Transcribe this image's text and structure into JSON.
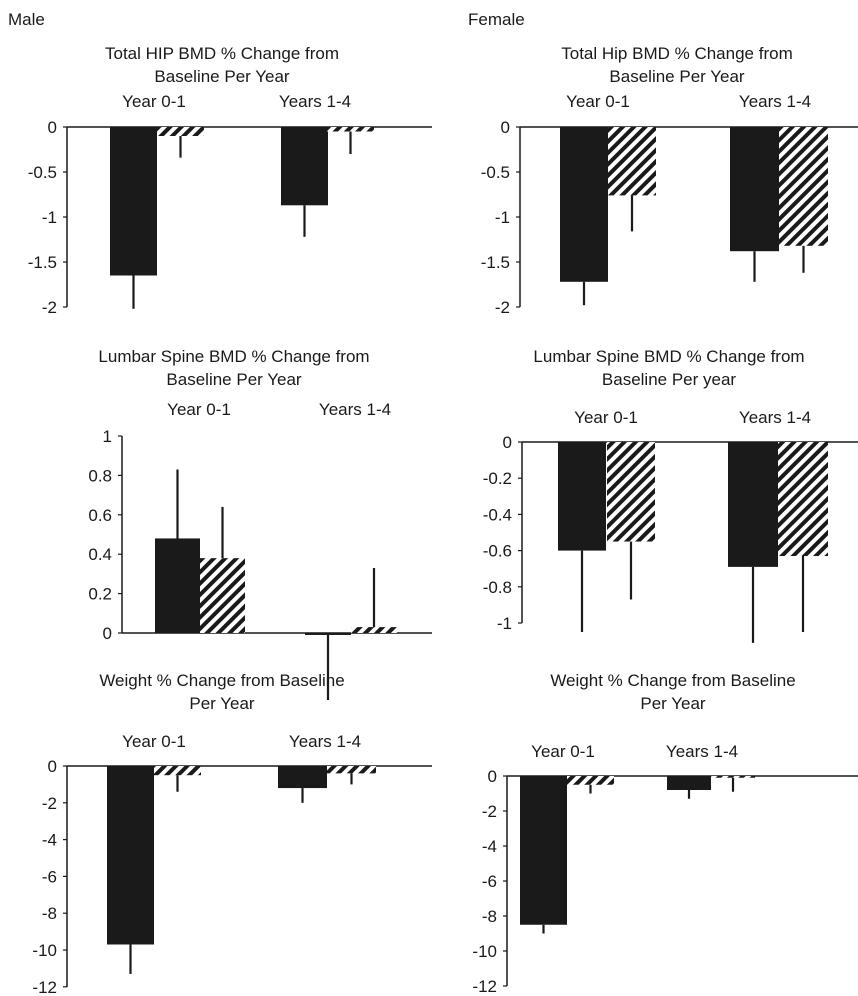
{
  "columns": {
    "male": "Male",
    "female": "Female"
  },
  "colors": {
    "bar_solid": "#1a1a1a",
    "bar_hatched": "#1a1a1a",
    "axis": "#1a1a1a"
  },
  "chart_data": [
    {
      "id": "male-hip",
      "type": "bar",
      "panel": "Male",
      "title": [
        "Total HIP BMD % Change from",
        "Baseline Per Year"
      ],
      "categories": [
        "Year 0-1",
        "Years 1-4"
      ],
      "ylim": [
        -2,
        0
      ],
      "yticks": [
        0,
        -0.5,
        -1,
        -1.5,
        -2
      ],
      "ytick_labels": [
        "0",
        "-0.5",
        "-1",
        "-1.5",
        "-2"
      ],
      "category_labels_position": "top",
      "series": [
        {
          "style": "solid",
          "values": [
            -1.65,
            -0.87
          ],
          "error": [
            0.37,
            0.35
          ]
        },
        {
          "style": "hatched",
          "values": [
            -0.1,
            -0.05
          ],
          "error": [
            0.24,
            0.25
          ]
        }
      ]
    },
    {
      "id": "female-hip",
      "type": "bar",
      "panel": "Female",
      "title": [
        "Total Hip BMD % Change from",
        "Baseline Per Year"
      ],
      "categories": [
        "Year 0-1",
        "Years 1-4"
      ],
      "ylim": [
        -2,
        0
      ],
      "yticks": [
        0,
        -0.5,
        -1,
        -1.5,
        -2
      ],
      "ytick_labels": [
        "0",
        "-0.5",
        "-1",
        "-1.5",
        "-2"
      ],
      "category_labels_position": "top",
      "series": [
        {
          "style": "solid",
          "values": [
            -1.72,
            -1.38
          ],
          "error": [
            0.26,
            0.34
          ]
        },
        {
          "style": "hatched",
          "values": [
            -0.76,
            -1.32
          ],
          "error": [
            0.4,
            0.3
          ]
        }
      ]
    },
    {
      "id": "male-spine",
      "type": "bar",
      "panel": "Male",
      "title": [
        "Lumbar Spine BMD % Change from",
        "Baseline Per Year"
      ],
      "categories": [
        "Year 0-1",
        "Years 1-4"
      ],
      "ylim": [
        0,
        1
      ],
      "yticks": [
        1,
        0.8,
        0.6,
        0.4,
        0.2,
        0
      ],
      "ytick_labels": [
        "1",
        "0.8",
        "0.6",
        "0.4",
        "0.2",
        "0"
      ],
      "category_labels_position": "top",
      "series": [
        {
          "style": "solid",
          "values": [
            0.48,
            -0.01
          ],
          "error": [
            0.35,
            0.33
          ]
        },
        {
          "style": "hatched",
          "values": [
            0.38,
            0.03
          ],
          "error": [
            0.26,
            0.3
          ]
        }
      ]
    },
    {
      "id": "female-spine",
      "type": "bar",
      "panel": "Female",
      "title": [
        "Lumbar Spine BMD % Change from",
        "Baseline Per year"
      ],
      "categories": [
        "Year 0-1",
        "Years 1-4"
      ],
      "ylim": [
        -1,
        0
      ],
      "yticks": [
        0,
        -0.2,
        -0.4,
        -0.6,
        -0.8,
        -1
      ],
      "ytick_labels": [
        "0",
        "-0.2",
        "-0.4",
        "-0.6",
        "-0.8",
        "-1"
      ],
      "category_labels_position": "top",
      "series": [
        {
          "style": "solid",
          "values": [
            -0.6,
            -0.69
          ],
          "error": [
            0.45,
            0.42
          ]
        },
        {
          "style": "hatched",
          "values": [
            -0.55,
            -0.63
          ],
          "error": [
            0.32,
            0.42
          ]
        }
      ]
    },
    {
      "id": "male-weight",
      "type": "bar",
      "panel": "Male",
      "title": [
        "Weight % Change from Baseline",
        "Per Year"
      ],
      "categories": [
        "Year 0-1",
        "Years 1-4"
      ],
      "ylim": [
        -12,
        0
      ],
      "yticks": [
        0,
        -2,
        -4,
        -6,
        -8,
        -10,
        -12
      ],
      "ytick_labels": [
        "0",
        "-2",
        "-4",
        "-6",
        "-8",
        "-10",
        "-12"
      ],
      "category_labels_position": "top",
      "series": [
        {
          "style": "solid",
          "values": [
            -9.7,
            -1.2
          ],
          "error": [
            1.6,
            0.8
          ]
        },
        {
          "style": "hatched",
          "values": [
            -0.5,
            -0.4
          ],
          "error": [
            0.9,
            0.6
          ]
        }
      ]
    },
    {
      "id": "female-weight",
      "type": "bar",
      "panel": "Female",
      "title": [
        "Weight % Change from Baseline",
        "Per Year"
      ],
      "categories": [
        "Year 0-1",
        "Years 1-4"
      ],
      "ylim": [
        -12,
        0
      ],
      "yticks": [
        0,
        -2,
        -4,
        -6,
        -8,
        -10,
        -12
      ],
      "ytick_labels": [
        "0",
        "-2",
        "-4",
        "-6",
        "-8",
        "-10",
        "-12"
      ],
      "category_labels_position": "top",
      "series": [
        {
          "style": "solid",
          "values": [
            -8.5,
            -0.8
          ],
          "error": [
            0.5,
            0.5
          ]
        },
        {
          "style": "hatched",
          "values": [
            -0.5,
            -0.1
          ],
          "error": [
            0.5,
            0.8
          ]
        }
      ]
    }
  ]
}
